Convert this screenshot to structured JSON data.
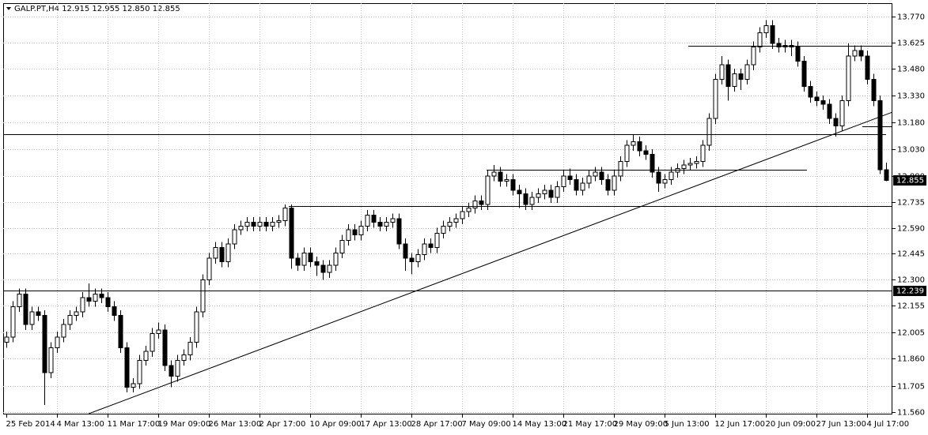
{
  "chart_data": {
    "type": "candlestick",
    "title": "GALP.PT,H4 12.915 12.955 12.850 12.855",
    "categories": [
      "25 Feb 2014",
      null,
      null,
      null,
      null,
      null,
      null,
      null,
      "4 Mar 13:00",
      null,
      null,
      null,
      null,
      null,
      null,
      null,
      "11 Mar 17:00",
      null,
      null,
      null,
      null,
      null,
      null,
      null,
      "19 Mar 09:00",
      null,
      null,
      null,
      null,
      null,
      null,
      null,
      "26 Mar 13:00",
      null,
      null,
      null,
      null,
      null,
      null,
      null,
      "2 Apr 17:00",
      null,
      null,
      null,
      null,
      null,
      null,
      null,
      "10 Apr 09:00",
      null,
      null,
      null,
      null,
      null,
      null,
      null,
      "17 Apr 13:00",
      null,
      null,
      null,
      null,
      null,
      null,
      null,
      "28 Apr 17:00",
      null,
      null,
      null,
      null,
      null,
      null,
      null,
      "7 May 09:00",
      null,
      null,
      null,
      null,
      null,
      null,
      null,
      "14 May 13:00",
      null,
      null,
      null,
      null,
      null,
      null,
      null,
      "21 May 17:00",
      null,
      null,
      null,
      null,
      null,
      null,
      null,
      "29 May 09:00",
      null,
      null,
      null,
      null,
      null,
      null,
      null,
      "5 Jun 13:00",
      null,
      null,
      null,
      null,
      null,
      null,
      null,
      "12 Jun 17:00",
      null,
      null,
      null,
      null,
      null,
      null,
      null,
      "20 Jun 09:00",
      null,
      null,
      null,
      null,
      null,
      null,
      null,
      "27 Jun 13:00",
      null,
      null,
      null,
      null,
      null,
      null,
      null,
      "4 Jul 17:00",
      null,
      null,
      null
    ],
    "candles": [
      [
        11.95,
        12.01,
        11.92,
        11.98
      ],
      [
        11.98,
        12.18,
        11.95,
        12.15
      ],
      [
        12.15,
        12.25,
        12.12,
        12.22
      ],
      [
        12.22,
        12.25,
        12.02,
        12.05
      ],
      [
        12.05,
        12.15,
        12.02,
        12.12
      ],
      [
        12.12,
        12.15,
        12.07,
        12.1
      ],
      [
        12.1,
        12.13,
        11.6,
        11.78
      ],
      [
        11.78,
        11.95,
        11.75,
        11.92
      ],
      [
        11.92,
        12.01,
        11.89,
        11.98
      ],
      [
        11.98,
        12.08,
        11.95,
        12.05
      ],
      [
        12.05,
        12.13,
        12.02,
        12.1
      ],
      [
        12.1,
        12.15,
        12.07,
        12.12
      ],
      [
        12.12,
        12.23,
        12.09,
        12.2
      ],
      [
        12.2,
        12.28,
        12.15,
        12.18
      ],
      [
        12.18,
        12.25,
        12.15,
        12.22
      ],
      [
        12.22,
        12.25,
        12.17,
        12.2
      ],
      [
        12.2,
        12.23,
        12.12,
        12.15
      ],
      [
        12.15,
        12.18,
        12.07,
        12.1
      ],
      [
        12.1,
        12.13,
        11.89,
        11.92
      ],
      [
        11.92,
        11.95,
        11.67,
        11.7
      ],
      [
        11.7,
        11.75,
        11.67,
        11.72
      ],
      [
        11.72,
        11.88,
        11.69,
        11.85
      ],
      [
        11.85,
        11.93,
        11.82,
        11.9
      ],
      [
        11.9,
        12.03,
        11.87,
        12.0
      ],
      [
        12.0,
        12.06,
        11.97,
        12.02
      ],
      [
        12.02,
        12.05,
        11.79,
        11.82
      ],
      [
        11.82,
        11.85,
        11.7,
        11.76
      ],
      [
        11.76,
        11.88,
        11.73,
        11.85
      ],
      [
        11.85,
        11.91,
        11.82,
        11.88
      ],
      [
        11.88,
        11.98,
        11.85,
        11.95
      ],
      [
        11.95,
        12.15,
        11.92,
        12.12
      ],
      [
        12.12,
        12.33,
        12.09,
        12.3
      ],
      [
        12.3,
        12.45,
        12.27,
        12.42
      ],
      [
        12.42,
        12.51,
        12.39,
        12.48
      ],
      [
        12.48,
        12.51,
        12.37,
        12.4
      ],
      [
        12.4,
        12.53,
        12.37,
        12.5
      ],
      [
        12.5,
        12.61,
        12.47,
        12.58
      ],
      [
        12.58,
        12.63,
        12.55,
        12.6
      ],
      [
        12.6,
        12.65,
        12.57,
        12.62
      ],
      [
        12.62,
        12.65,
        12.57,
        12.6
      ],
      [
        12.6,
        12.65,
        12.57,
        12.62
      ],
      [
        12.62,
        12.65,
        12.57,
        12.6
      ],
      [
        12.6,
        12.65,
        12.57,
        12.62
      ],
      [
        12.62,
        12.66,
        12.59,
        12.63
      ],
      [
        12.63,
        12.72,
        12.6,
        12.7
      ],
      [
        12.7,
        12.72,
        12.36,
        12.42
      ],
      [
        12.42,
        12.45,
        12.35,
        12.38
      ],
      [
        12.38,
        12.48,
        12.35,
        12.45
      ],
      [
        12.45,
        12.48,
        12.37,
        12.4
      ],
      [
        12.4,
        12.43,
        12.32,
        12.38
      ],
      [
        12.38,
        12.41,
        12.3,
        12.34
      ],
      [
        12.34,
        12.41,
        12.31,
        12.38
      ],
      [
        12.38,
        12.48,
        12.35,
        12.45
      ],
      [
        12.45,
        12.55,
        12.42,
        12.52
      ],
      [
        12.52,
        12.61,
        12.49,
        12.58
      ],
      [
        12.58,
        12.61,
        12.52,
        12.55
      ],
      [
        12.55,
        12.63,
        12.52,
        12.6
      ],
      [
        12.6,
        12.69,
        12.57,
        12.66
      ],
      [
        12.66,
        12.69,
        12.59,
        12.62
      ],
      [
        12.62,
        12.65,
        12.57,
        12.6
      ],
      [
        12.6,
        12.65,
        12.57,
        12.62
      ],
      [
        12.62,
        12.67,
        12.59,
        12.64
      ],
      [
        12.64,
        12.67,
        12.47,
        12.5
      ],
      [
        12.5,
        12.53,
        12.35,
        12.42
      ],
      [
        12.42,
        12.45,
        12.33,
        12.4
      ],
      [
        12.4,
        12.47,
        12.37,
        12.44
      ],
      [
        12.44,
        12.53,
        12.41,
        12.5
      ],
      [
        12.5,
        12.53,
        12.45,
        12.48
      ],
      [
        12.48,
        12.59,
        12.45,
        12.56
      ],
      [
        12.56,
        12.63,
        12.53,
        12.6
      ],
      [
        12.6,
        12.65,
        12.57,
        12.62
      ],
      [
        12.62,
        12.67,
        12.59,
        12.64
      ],
      [
        12.64,
        12.71,
        12.61,
        12.68
      ],
      [
        12.68,
        12.73,
        12.65,
        12.7
      ],
      [
        12.7,
        12.77,
        12.67,
        12.74
      ],
      [
        12.74,
        12.77,
        12.69,
        12.72
      ],
      [
        12.72,
        12.91,
        12.69,
        12.88
      ],
      [
        12.88,
        12.94,
        12.85,
        12.9
      ],
      [
        12.9,
        12.93,
        12.82,
        12.85
      ],
      [
        12.85,
        12.89,
        12.82,
        12.86
      ],
      [
        12.86,
        12.89,
        12.77,
        12.8
      ],
      [
        12.8,
        12.83,
        12.7,
        12.78
      ],
      [
        12.78,
        12.81,
        12.69,
        12.72
      ],
      [
        12.72,
        12.79,
        12.69,
        12.76
      ],
      [
        12.76,
        12.81,
        12.73,
        12.78
      ],
      [
        12.78,
        12.83,
        12.75,
        12.8
      ],
      [
        12.8,
        12.83,
        12.73,
        12.76
      ],
      [
        12.76,
        12.85,
        12.73,
        12.82
      ],
      [
        12.82,
        12.91,
        12.79,
        12.88
      ],
      [
        12.88,
        12.92,
        12.83,
        12.86
      ],
      [
        12.86,
        12.89,
        12.77,
        12.8
      ],
      [
        12.8,
        12.87,
        12.77,
        12.84
      ],
      [
        12.84,
        12.91,
        12.81,
        12.88
      ],
      [
        12.88,
        12.93,
        12.85,
        12.9
      ],
      [
        12.9,
        12.93,
        12.83,
        12.86
      ],
      [
        12.86,
        12.89,
        12.77,
        12.8
      ],
      [
        12.8,
        12.91,
        12.77,
        12.88
      ],
      [
        12.88,
        12.99,
        12.85,
        12.96
      ],
      [
        12.96,
        13.08,
        12.93,
        13.05
      ],
      [
        13.05,
        13.11,
        13.02,
        13.07
      ],
      [
        13.07,
        13.1,
        12.99,
        13.02
      ],
      [
        13.02,
        13.05,
        12.97,
        13.0
      ],
      [
        13.0,
        13.03,
        12.87,
        12.9
      ],
      [
        12.9,
        12.93,
        12.79,
        12.84
      ],
      [
        12.84,
        12.89,
        12.81,
        12.86
      ],
      [
        12.86,
        12.93,
        12.83,
        12.9
      ],
      [
        12.9,
        12.95,
        12.87,
        12.92
      ],
      [
        12.92,
        12.97,
        12.89,
        12.94
      ],
      [
        12.94,
        12.98,
        12.91,
        12.95
      ],
      [
        12.95,
        12.99,
        12.92,
        12.96
      ],
      [
        12.96,
        13.08,
        12.93,
        13.05
      ],
      [
        13.05,
        13.23,
        13.02,
        13.2
      ],
      [
        13.2,
        13.45,
        13.17,
        13.42
      ],
      [
        13.42,
        13.55,
        13.39,
        13.5
      ],
      [
        13.5,
        13.53,
        13.3,
        13.38
      ],
      [
        13.38,
        13.48,
        13.35,
        13.45
      ],
      [
        13.45,
        13.48,
        13.36,
        13.42
      ],
      [
        13.42,
        13.53,
        13.39,
        13.5
      ],
      [
        13.5,
        13.63,
        13.47,
        13.6
      ],
      [
        13.6,
        13.71,
        13.57,
        13.68
      ],
      [
        13.68,
        13.75,
        13.65,
        13.72
      ],
      [
        13.72,
        13.75,
        13.59,
        13.62
      ],
      [
        13.62,
        13.65,
        13.57,
        13.6
      ],
      [
        13.6,
        13.64,
        13.57,
        13.61
      ],
      [
        13.61,
        13.64,
        13.55,
        13.6
      ],
      [
        13.6,
        13.63,
        13.49,
        13.52
      ],
      [
        13.52,
        13.55,
        13.35,
        13.38
      ],
      [
        13.38,
        13.41,
        13.29,
        13.32
      ],
      [
        13.32,
        13.35,
        13.27,
        13.3
      ],
      [
        13.3,
        13.33,
        13.25,
        13.28
      ],
      [
        13.28,
        13.31,
        13.17,
        13.2
      ],
      [
        13.2,
        13.23,
        13.1,
        13.16
      ],
      [
        13.16,
        13.33,
        13.13,
        13.3
      ],
      [
        13.3,
        13.62,
        13.27,
        13.55
      ],
      [
        13.55,
        13.61,
        13.52,
        13.58
      ],
      [
        13.58,
        13.61,
        13.52,
        13.55
      ],
      [
        13.55,
        13.58,
        13.39,
        13.42
      ],
      [
        13.42,
        13.45,
        13.27,
        13.3
      ],
      [
        13.3,
        13.33,
        12.89,
        12.915
      ],
      [
        12.915,
        12.955,
        12.85,
        12.855
      ]
    ],
    "xlim": [
      -0.5,
      140
    ],
    "ylim": [
      11.547,
      13.845
    ],
    "yticks": [
      {
        "value": 13.77,
        "label": "13.770"
      },
      13.625,
      {
        "value": 13.48,
        "label": "13.480"
      },
      {
        "value": 13.33,
        "label": "13.330"
      },
      {
        "value": 13.18,
        "label": "13.180"
      },
      {
        "value": 13.03,
        "label": "13.030"
      },
      {
        "value": 12.88,
        "label": "12.880"
      },
      12.735,
      {
        "value": 12.59,
        "label": "12.590"
      },
      12.445,
      {
        "value": 12.3,
        "label": "12.300"
      },
      12.155,
      12.005,
      {
        "value": 11.86,
        "label": "11.860"
      },
      11.705,
      {
        "value": 11.56,
        "label": "11.560"
      }
    ],
    "grid": true,
    "up_color": "#ffffff",
    "down_color": "#000000",
    "outline_color": "#000000",
    "hlines": [
      {
        "value": 12.239,
        "x": [
          -0.5,
          140
        ]
      },
      {
        "value": 13.113,
        "x": [
          -0.5,
          139
        ]
      },
      {
        "value": 12.71,
        "x": [
          44.6,
          140
        ]
      },
      {
        "value": 12.914,
        "x": [
          75.9,
          126.5
        ]
      },
      {
        "value": 13.607,
        "x": [
          107.75,
          140
        ]
      },
      {
        "value": 13.157,
        "x": [
          135.25,
          140
        ]
      }
    ],
    "trendline": {
      "x": [
        13,
        140
      ],
      "y": [
        11.551,
        13.236
      ]
    },
    "price_markers": [
      12.855,
      12.239
    ]
  }
}
